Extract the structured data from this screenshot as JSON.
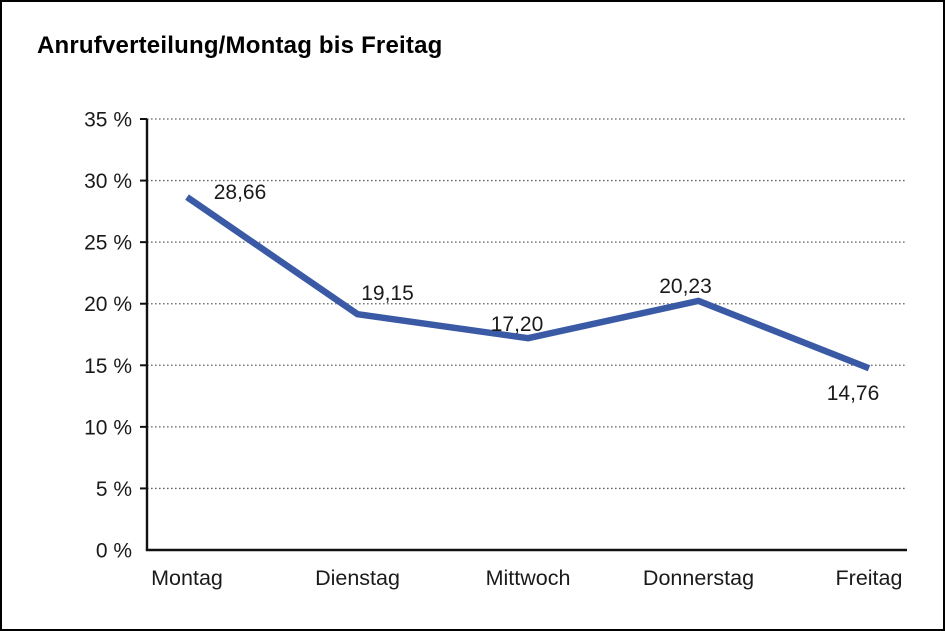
{
  "window": {
    "background": "#ffffff",
    "border_color": "#000000"
  },
  "chart_data": {
    "type": "line",
    "title": "Anrufverteilung/Montag bis Freitag",
    "categories": [
      "Montag",
      "Dienstag",
      "Mittwoch",
      "Donnerstag",
      "Freitag"
    ],
    "values": [
      28.66,
      19.15,
      17.2,
      20.23,
      14.76
    ],
    "value_labels": [
      "28,66",
      "19,15",
      "17,20",
      "20,23",
      "14,76"
    ],
    "series": [
      {
        "name": "Anrufverteilung",
        "values": [
          28.66,
          19.15,
          17.2,
          20.23,
          14.76
        ]
      }
    ],
    "xlabel": "",
    "ylabel": "",
    "ylim": [
      0,
      35
    ],
    "y_tick_step": 5,
    "y_ticks": [
      0,
      5,
      10,
      15,
      20,
      25,
      30,
      35
    ],
    "y_tick_labels": [
      "0 %",
      "5 %",
      "10 %",
      "15 %",
      "20 %",
      "25 %",
      "30 %",
      "35 %"
    ],
    "grid": "horizontal-dotted",
    "legend": "none",
    "colors": {
      "line": "#3A5AA5",
      "grid": "#666666",
      "axis": "#111111",
      "text": "#1a1a1a",
      "data_label": "#1a1a1a"
    }
  }
}
